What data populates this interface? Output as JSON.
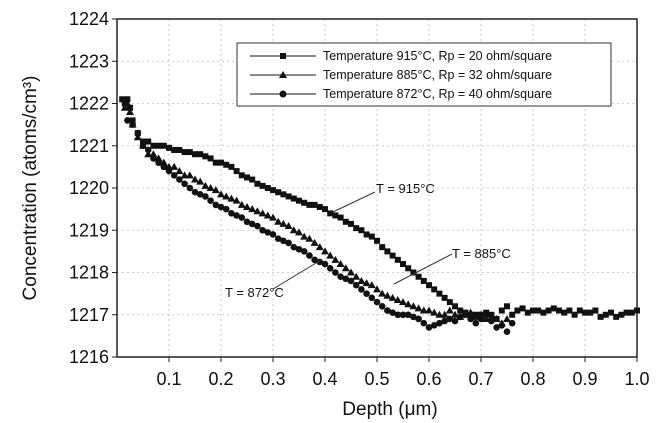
{
  "chart_data": {
    "type": "scatter",
    "title": "",
    "xlabel": "Depth (μm)",
    "ylabel": "Concentration (atoms/cm³)",
    "xlim": [
      0,
      1.0
    ],
    "ylim": [
      1216,
      1224
    ],
    "x_ticks": [
      "0.1",
      "0.2",
      "0.3",
      "0.4",
      "0.5",
      "0.6",
      "0.7",
      "0.8",
      "0.9",
      "1.0"
    ],
    "x_tick_values": [
      0.1,
      0.2,
      0.3,
      0.4,
      0.5,
      0.6,
      0.7,
      0.8,
      0.9,
      1.0
    ],
    "y_ticks": [
      "1216",
      "1217",
      "1218",
      "1219",
      "1220",
      "1221",
      "1222",
      "1223",
      "1224"
    ],
    "y_tick_values": [
      1216,
      1217,
      1218,
      1219,
      1220,
      1221,
      1222,
      1223,
      1224
    ],
    "grid": "dashed",
    "legend_position": "top-right",
    "series": [
      {
        "name": "Temperature 915°C, Rp = 20 ohm/square",
        "marker": "square",
        "x": [
          0.01,
          0.015,
          0.02,
          0.025,
          0.03,
          0.04,
          0.05,
          0.06,
          0.07,
          0.08,
          0.09,
          0.1,
          0.11,
          0.12,
          0.13,
          0.14,
          0.15,
          0.16,
          0.17,
          0.18,
          0.19,
          0.2,
          0.21,
          0.22,
          0.23,
          0.24,
          0.25,
          0.26,
          0.27,
          0.28,
          0.29,
          0.3,
          0.31,
          0.32,
          0.33,
          0.34,
          0.35,
          0.36,
          0.37,
          0.38,
          0.39,
          0.4,
          0.41,
          0.42,
          0.43,
          0.44,
          0.45,
          0.46,
          0.47,
          0.48,
          0.49,
          0.5,
          0.51,
          0.52,
          0.53,
          0.54,
          0.55,
          0.56,
          0.57,
          0.58,
          0.59,
          0.6,
          0.61,
          0.62,
          0.63,
          0.64,
          0.65,
          0.66,
          0.67,
          0.68,
          0.69,
          0.7,
          0.71,
          0.72,
          0.73,
          0.74,
          0.75,
          0.76,
          0.77,
          0.78,
          0.79,
          0.8,
          0.81,
          0.82,
          0.83,
          0.84,
          0.85,
          0.86,
          0.87,
          0.88,
          0.89,
          0.9,
          0.91,
          0.92,
          0.93,
          0.94,
          0.95,
          0.96,
          0.97,
          0.98,
          0.99,
          1.0
        ],
        "y": [
          1222.1,
          1222.0,
          1222.1,
          1221.9,
          1221.6,
          1221.3,
          1221.1,
          1221.1,
          1221.0,
          1221.0,
          1221.0,
          1220.95,
          1220.9,
          1220.9,
          1220.85,
          1220.85,
          1220.8,
          1220.8,
          1220.75,
          1220.7,
          1220.6,
          1220.6,
          1220.55,
          1220.5,
          1220.4,
          1220.3,
          1220.25,
          1220.2,
          1220.1,
          1220.05,
          1220.0,
          1219.95,
          1219.9,
          1219.85,
          1219.8,
          1219.75,
          1219.7,
          1219.65,
          1219.6,
          1219.6,
          1219.55,
          1219.5,
          1219.4,
          1219.35,
          1219.3,
          1219.2,
          1219.15,
          1219.05,
          1219.0,
          1218.9,
          1218.85,
          1218.75,
          1218.6,
          1218.5,
          1218.4,
          1218.3,
          1218.2,
          1218.1,
          1218.0,
          1217.9,
          1217.8,
          1217.7,
          1217.6,
          1217.5,
          1217.4,
          1217.3,
          1217.2,
          1217.1,
          1217.05,
          1217.0,
          1217.0,
          1217.0,
          1217.05,
          1217.0,
          1216.9,
          1217.1,
          1217.2,
          1217.0,
          1217.1,
          1217.15,
          1217.05,
          1217.1,
          1217.1,
          1217.05,
          1217.1,
          1217.15,
          1217.1,
          1217.05,
          1217.1,
          1217.0,
          1217.1,
          1217.05,
          1217.05,
          1217.1,
          1216.95,
          1217.0,
          1217.05,
          1216.95,
          1217.0,
          1217.05,
          1217.05,
          1217.1
        ],
        "annotation": "T = 915°C"
      },
      {
        "name": "Temperature 885°C, Rp = 32 ohm/square",
        "marker": "triangle",
        "x": [
          0.015,
          0.02,
          0.025,
          0.03,
          0.04,
          0.05,
          0.06,
          0.07,
          0.08,
          0.09,
          0.1,
          0.11,
          0.12,
          0.13,
          0.14,
          0.15,
          0.16,
          0.17,
          0.18,
          0.19,
          0.2,
          0.21,
          0.22,
          0.23,
          0.24,
          0.25,
          0.26,
          0.27,
          0.28,
          0.29,
          0.3,
          0.31,
          0.32,
          0.33,
          0.34,
          0.35,
          0.36,
          0.37,
          0.38,
          0.39,
          0.4,
          0.41,
          0.42,
          0.43,
          0.44,
          0.45,
          0.46,
          0.47,
          0.48,
          0.49,
          0.5,
          0.51,
          0.52,
          0.53,
          0.54,
          0.55,
          0.56,
          0.57,
          0.58,
          0.59,
          0.6,
          0.61,
          0.62,
          0.63,
          0.64,
          0.65,
          0.66,
          0.67,
          0.68,
          0.69,
          0.7,
          0.71,
          0.72,
          0.73,
          0.74,
          0.75
        ],
        "y": [
          1221.9,
          1222.0,
          1221.8,
          1221.5,
          1221.2,
          1221.0,
          1220.8,
          1220.8,
          1220.7,
          1220.6,
          1220.5,
          1220.5,
          1220.4,
          1220.3,
          1220.3,
          1220.2,
          1220.15,
          1220.05,
          1220.0,
          1219.95,
          1219.85,
          1219.8,
          1219.75,
          1219.7,
          1219.6,
          1219.55,
          1219.5,
          1219.45,
          1219.4,
          1219.35,
          1219.3,
          1219.2,
          1219.15,
          1219.1,
          1219.0,
          1218.95,
          1218.85,
          1218.8,
          1218.7,
          1218.6,
          1218.5,
          1218.4,
          1218.3,
          1218.2,
          1218.1,
          1218.0,
          1217.9,
          1217.8,
          1217.75,
          1217.7,
          1217.6,
          1217.5,
          1217.45,
          1217.4,
          1217.35,
          1217.3,
          1217.25,
          1217.2,
          1217.15,
          1217.1,
          1217.1,
          1217.05,
          1217.0,
          1217.0,
          1217.1,
          1217.0,
          1216.95,
          1217.0,
          1217.05,
          1216.95,
          1217.0,
          1216.9,
          1216.95,
          1216.9,
          1216.8,
          1216.9
        ],
        "annotation": "T = 885°C"
      },
      {
        "name": "Temperature 872°C, Rp = 40 ohm/square",
        "marker": "circle",
        "x": [
          0.02,
          0.03,
          0.04,
          0.05,
          0.06,
          0.07,
          0.08,
          0.09,
          0.1,
          0.11,
          0.12,
          0.13,
          0.14,
          0.15,
          0.16,
          0.17,
          0.18,
          0.19,
          0.2,
          0.21,
          0.22,
          0.23,
          0.24,
          0.25,
          0.26,
          0.27,
          0.28,
          0.29,
          0.3,
          0.31,
          0.32,
          0.33,
          0.34,
          0.35,
          0.36,
          0.37,
          0.38,
          0.39,
          0.4,
          0.41,
          0.42,
          0.43,
          0.44,
          0.45,
          0.46,
          0.47,
          0.48,
          0.49,
          0.5,
          0.51,
          0.52,
          0.53,
          0.54,
          0.55,
          0.56,
          0.57,
          0.58,
          0.59,
          0.6,
          0.61,
          0.62,
          0.63,
          0.64,
          0.65,
          0.66,
          0.67,
          0.68,
          0.69,
          0.7,
          0.71,
          0.72,
          0.73,
          0.74,
          0.75,
          0.76
        ],
        "y": [
          1221.6,
          1221.5,
          1221.3,
          1221.0,
          1220.9,
          1220.7,
          1220.6,
          1220.5,
          1220.4,
          1220.3,
          1220.2,
          1220.1,
          1220.0,
          1219.9,
          1219.85,
          1219.8,
          1219.7,
          1219.6,
          1219.55,
          1219.5,
          1219.4,
          1219.35,
          1219.3,
          1219.2,
          1219.15,
          1219.1,
          1219.0,
          1218.95,
          1218.9,
          1218.8,
          1218.75,
          1218.7,
          1218.6,
          1218.55,
          1218.5,
          1218.4,
          1218.3,
          1218.25,
          1218.2,
          1218.1,
          1218.0,
          1217.9,
          1217.85,
          1217.8,
          1217.7,
          1217.6,
          1217.5,
          1217.4,
          1217.3,
          1217.2,
          1217.1,
          1217.05,
          1217.0,
          1217.0,
          1217.0,
          1216.95,
          1216.9,
          1216.8,
          1216.7,
          1216.75,
          1216.8,
          1216.85,
          1216.9,
          1216.85,
          1216.95,
          1217.0,
          1216.9,
          1216.8,
          1216.9,
          1217.0,
          1216.85,
          1216.7,
          1216.75,
          1216.6,
          1216.8
        ],
        "annotation": "T = 872°C"
      }
    ]
  }
}
